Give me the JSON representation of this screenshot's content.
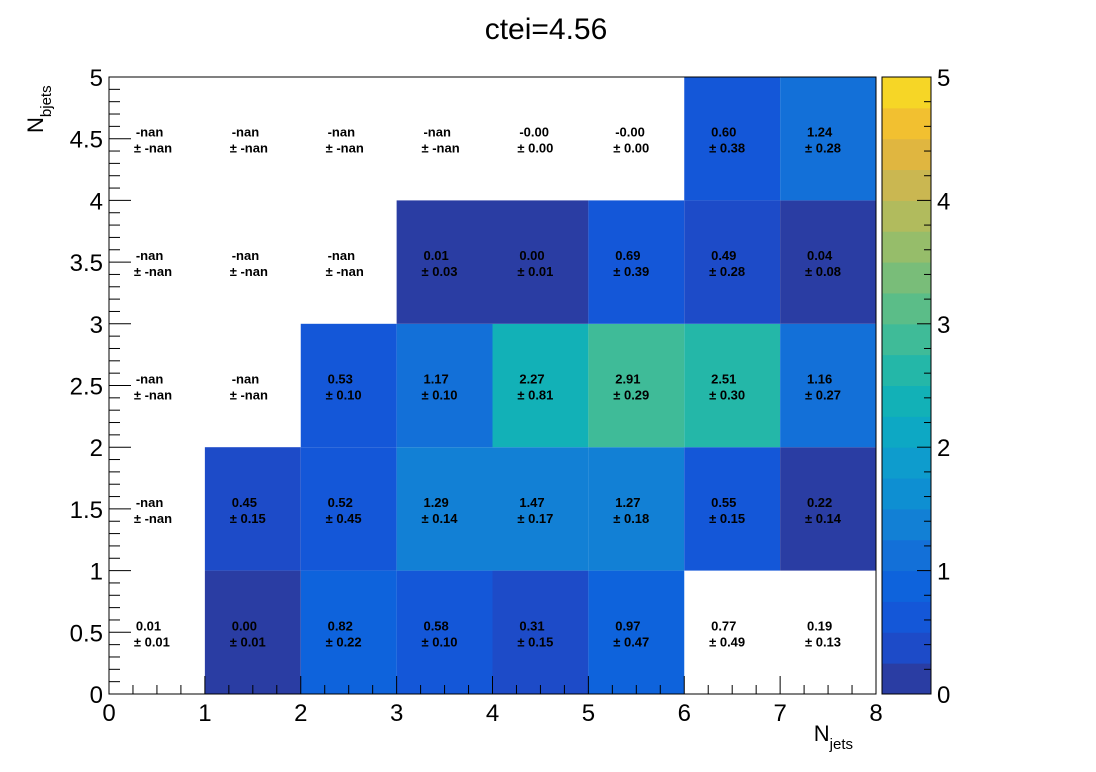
{
  "chart_data": {
    "type": "heatmap",
    "title": "ctei=4.56",
    "xlabel": {
      "main": "N",
      "sub": "jets"
    },
    "ylabel": {
      "main": "N",
      "sub": "bjets"
    },
    "xlim": [
      0,
      8
    ],
    "ylim": [
      0,
      5
    ],
    "x_bins": [
      0,
      1,
      2,
      3,
      4,
      5,
      6,
      7,
      8
    ],
    "y_bins": [
      0,
      1,
      2,
      3,
      4,
      5
    ],
    "x_ticks": [
      "0",
      "1",
      "2",
      "3",
      "4",
      "5",
      "6",
      "7",
      "8"
    ],
    "y_ticks": [
      "0",
      "0.5",
      "1",
      "1.5",
      "2",
      "2.5",
      "3",
      "3.5",
      "4",
      "4.5",
      "5"
    ],
    "colorbar": {
      "min": 0,
      "max": 5,
      "ticks": [
        "0",
        "1",
        "2",
        "3",
        "4",
        "5"
      ],
      "palette": "parula"
    },
    "grid": false,
    "cells": [
      {
        "x": 0.5,
        "y": 0.5,
        "value": 0.01,
        "val": "0.01",
        "err": "± 0.01",
        "filled": false
      },
      {
        "x": 1.5,
        "y": 0.5,
        "value": 0.0,
        "val": "0.00",
        "err": "± 0.01",
        "filled": true
      },
      {
        "x": 2.5,
        "y": 0.5,
        "value": 0.82,
        "val": "0.82",
        "err": "± 0.22",
        "filled": true
      },
      {
        "x": 3.5,
        "y": 0.5,
        "value": 0.58,
        "val": "0.58",
        "err": "± 0.10",
        "filled": true
      },
      {
        "x": 4.5,
        "y": 0.5,
        "value": 0.31,
        "val": "0.31",
        "err": "± 0.15",
        "filled": true
      },
      {
        "x": 5.5,
        "y": 0.5,
        "value": 0.97,
        "val": "0.97",
        "err": "± 0.47",
        "filled": true
      },
      {
        "x": 6.5,
        "y": 0.5,
        "value": 0.77,
        "val": "0.77",
        "err": "± 0.49",
        "filled": false
      },
      {
        "x": 7.5,
        "y": 0.5,
        "value": 0.19,
        "val": "0.19",
        "err": "± 0.13",
        "filled": false
      },
      {
        "x": 0.5,
        "y": 1.5,
        "value": null,
        "val": "-nan",
        "err": "± -nan",
        "filled": false
      },
      {
        "x": 1.5,
        "y": 1.5,
        "value": 0.45,
        "val": "0.45",
        "err": "± 0.15",
        "filled": true
      },
      {
        "x": 2.5,
        "y": 1.5,
        "value": 0.52,
        "val": "0.52",
        "err": "± 0.45",
        "filled": true
      },
      {
        "x": 3.5,
        "y": 1.5,
        "value": 1.29,
        "val": "1.29",
        "err": "± 0.14",
        "filled": true
      },
      {
        "x": 4.5,
        "y": 1.5,
        "value": 1.47,
        "val": "1.47",
        "err": "± 0.17",
        "filled": true
      },
      {
        "x": 5.5,
        "y": 1.5,
        "value": 1.27,
        "val": "1.27",
        "err": "± 0.18",
        "filled": true
      },
      {
        "x": 6.5,
        "y": 1.5,
        "value": 0.55,
        "val": "0.55",
        "err": "± 0.15",
        "filled": true
      },
      {
        "x": 7.5,
        "y": 1.5,
        "value": 0.22,
        "val": "0.22",
        "err": "± 0.14",
        "filled": true
      },
      {
        "x": 0.5,
        "y": 2.5,
        "value": null,
        "val": "-nan",
        "err": "± -nan",
        "filled": false
      },
      {
        "x": 1.5,
        "y": 2.5,
        "value": null,
        "val": "-nan",
        "err": "± -nan",
        "filled": false
      },
      {
        "x": 2.5,
        "y": 2.5,
        "value": 0.53,
        "val": "0.53",
        "err": "± 0.10",
        "filled": true
      },
      {
        "x": 3.5,
        "y": 2.5,
        "value": 1.17,
        "val": "1.17",
        "err": "± 0.10",
        "filled": true
      },
      {
        "x": 4.5,
        "y": 2.5,
        "value": 2.27,
        "val": "2.27",
        "err": "± 0.81",
        "filled": true
      },
      {
        "x": 5.5,
        "y": 2.5,
        "value": 2.91,
        "val": "2.91",
        "err": "± 0.29",
        "filled": true
      },
      {
        "x": 6.5,
        "y": 2.5,
        "value": 2.51,
        "val": "2.51",
        "err": "± 0.30",
        "filled": true
      },
      {
        "x": 7.5,
        "y": 2.5,
        "value": 1.16,
        "val": "1.16",
        "err": "± 0.27",
        "filled": true
      },
      {
        "x": 0.5,
        "y": 3.5,
        "value": null,
        "val": "-nan",
        "err": "± -nan",
        "filled": false
      },
      {
        "x": 1.5,
        "y": 3.5,
        "value": null,
        "val": "-nan",
        "err": "± -nan",
        "filled": false
      },
      {
        "x": 2.5,
        "y": 3.5,
        "value": null,
        "val": "-nan",
        "err": "± -nan",
        "filled": false
      },
      {
        "x": 3.5,
        "y": 3.5,
        "value": 0.01,
        "val": "0.01",
        "err": "± 0.03",
        "filled": true
      },
      {
        "x": 4.5,
        "y": 3.5,
        "value": 0.0,
        "val": "0.00",
        "err": "± 0.01",
        "filled": true
      },
      {
        "x": 5.5,
        "y": 3.5,
        "value": 0.69,
        "val": "0.69",
        "err": "± 0.39",
        "filled": true
      },
      {
        "x": 6.5,
        "y": 3.5,
        "value": 0.49,
        "val": "0.49",
        "err": "± 0.28",
        "filled": true
      },
      {
        "x": 7.5,
        "y": 3.5,
        "value": 0.04,
        "val": "0.04",
        "err": "± 0.08",
        "filled": true
      },
      {
        "x": 0.5,
        "y": 4.5,
        "value": null,
        "val": "-nan",
        "err": "± -nan",
        "filled": false
      },
      {
        "x": 1.5,
        "y": 4.5,
        "value": null,
        "val": "-nan",
        "err": "± -nan",
        "filled": false
      },
      {
        "x": 2.5,
        "y": 4.5,
        "value": null,
        "val": "-nan",
        "err": "± -nan",
        "filled": false
      },
      {
        "x": 3.5,
        "y": 4.5,
        "value": null,
        "val": "-nan",
        "err": "± -nan",
        "filled": false
      },
      {
        "x": 4.5,
        "y": 4.5,
        "value": -0.0,
        "val": "-0.00",
        "err": "± 0.00",
        "filled": false
      },
      {
        "x": 5.5,
        "y": 4.5,
        "value": -0.0,
        "val": "-0.00",
        "err": "± 0.00",
        "filled": false
      },
      {
        "x": 6.5,
        "y": 4.5,
        "value": 0.6,
        "val": "0.60",
        "err": "± 0.38",
        "filled": true
      },
      {
        "x": 7.5,
        "y": 4.5,
        "value": 1.24,
        "val": "1.24",
        "err": "± 0.28",
        "filled": true
      }
    ]
  }
}
